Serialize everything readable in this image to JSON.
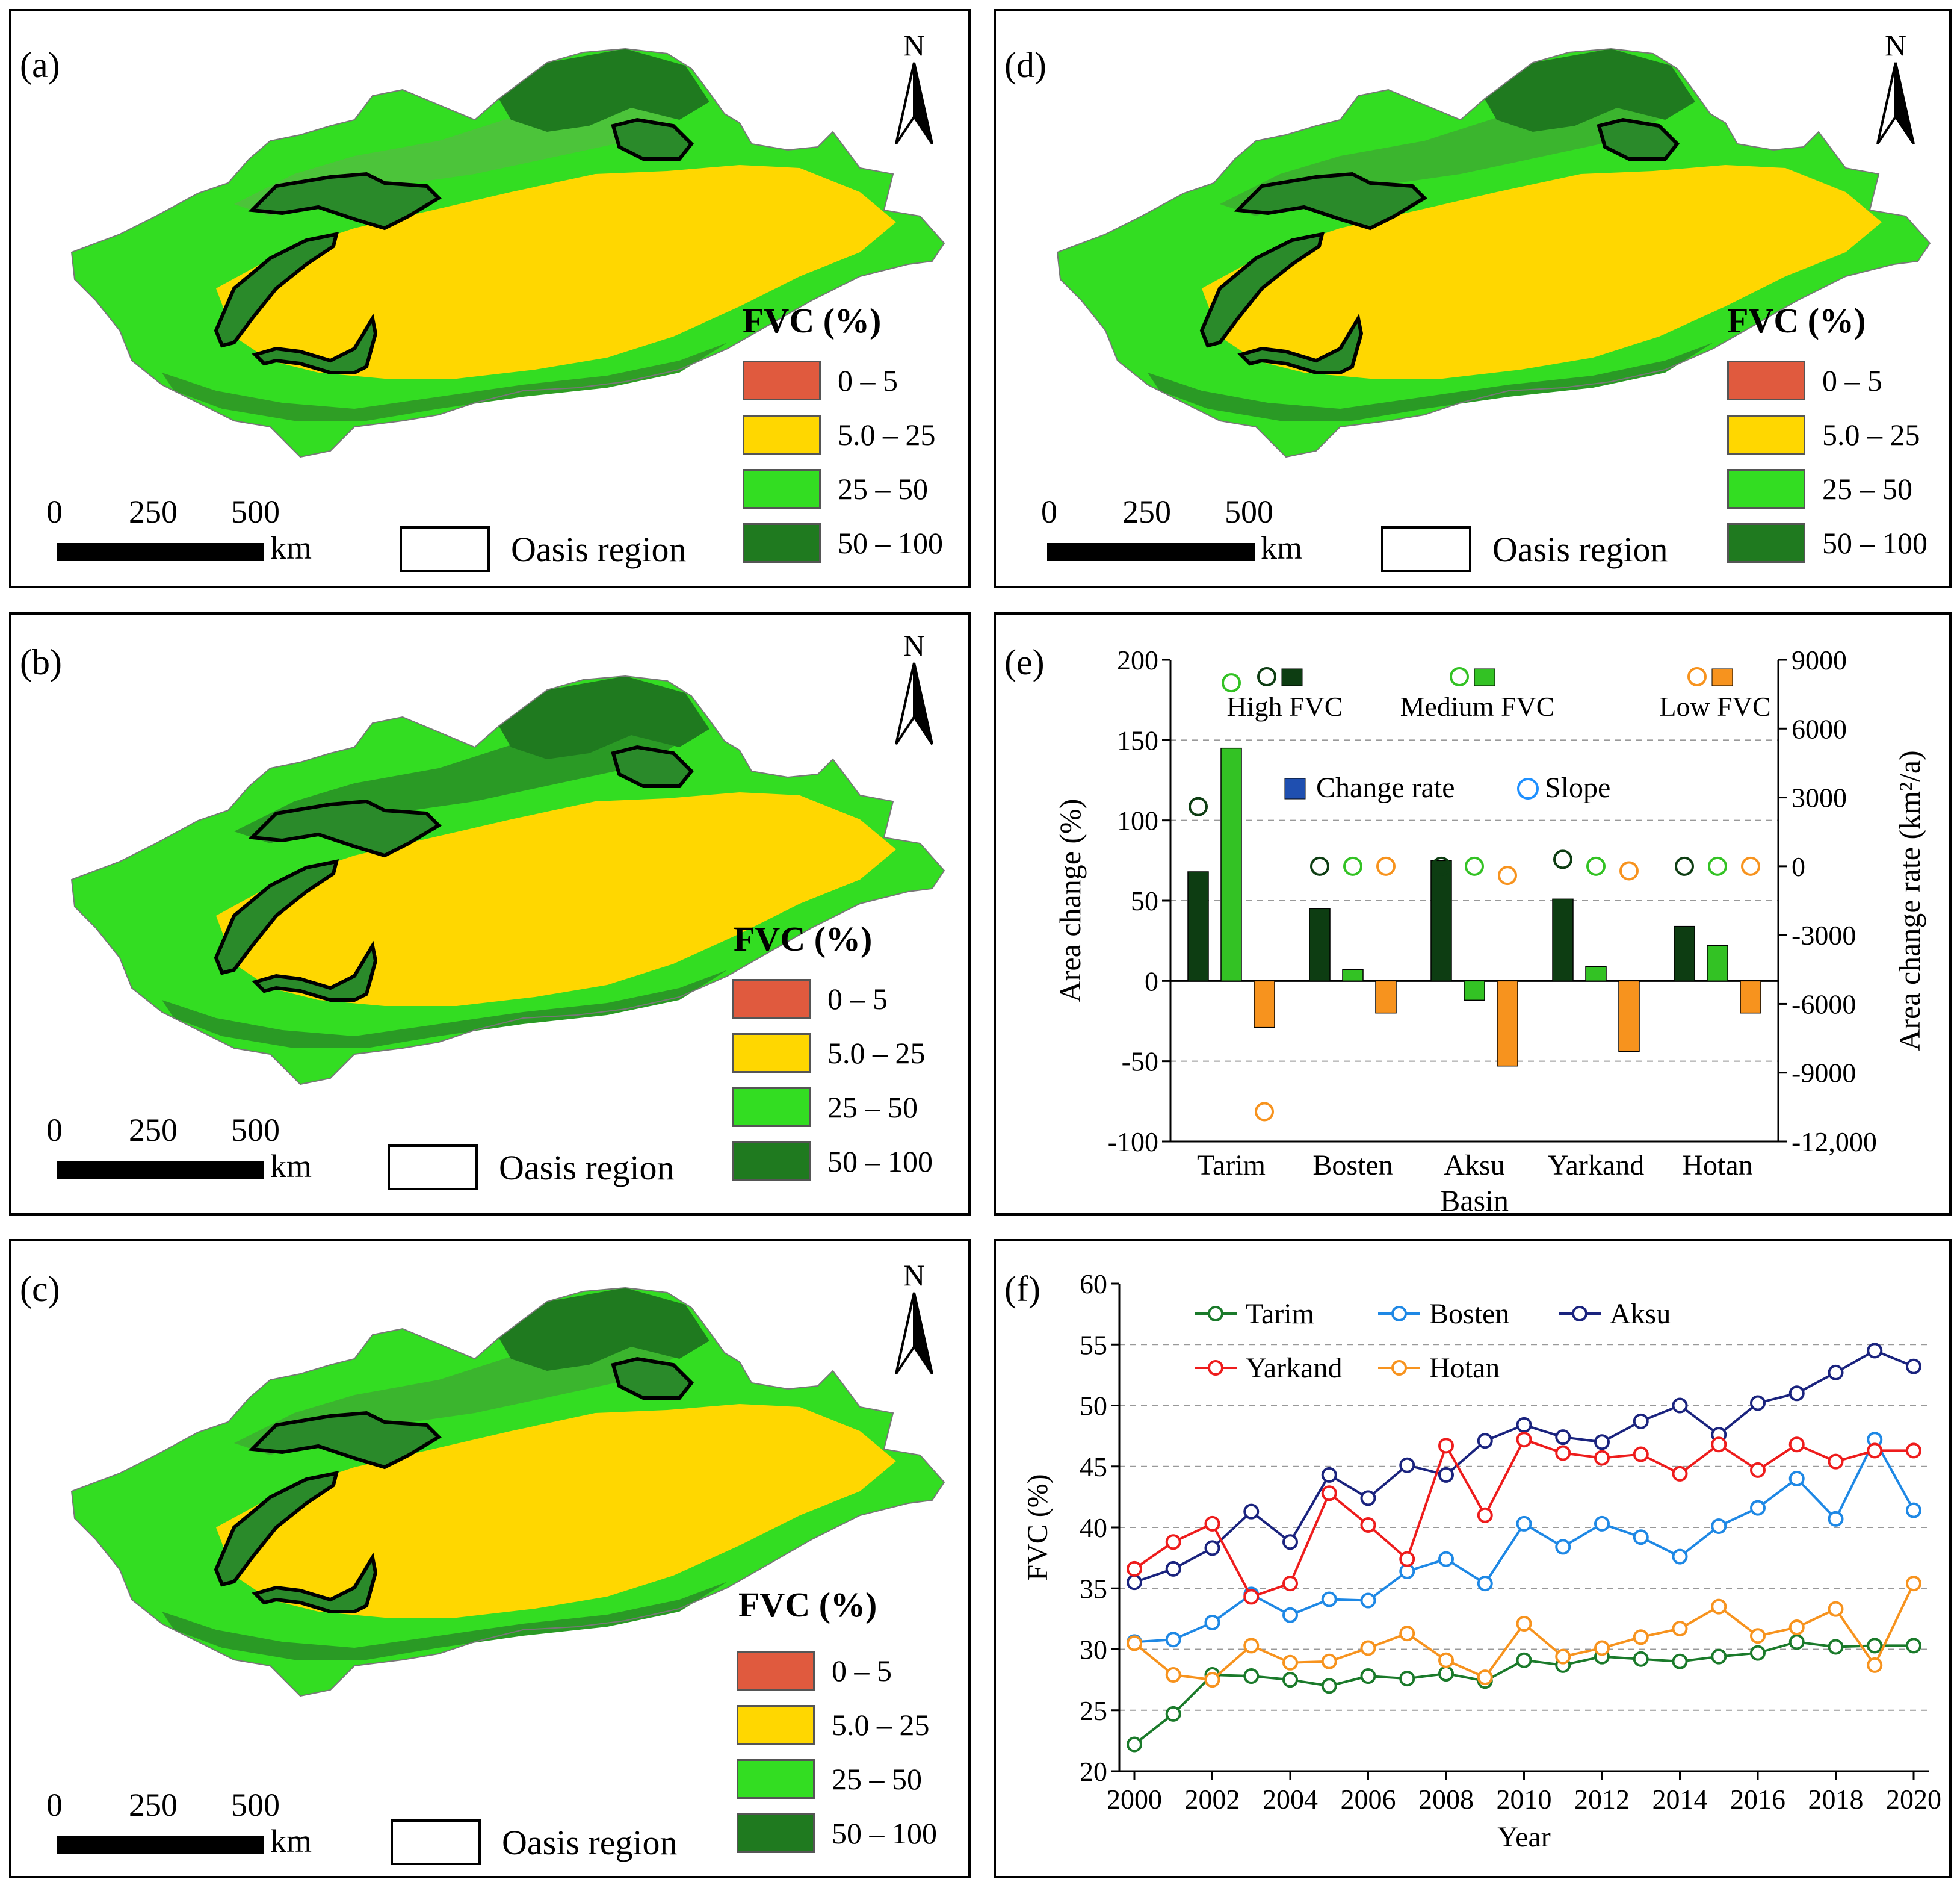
{
  "maps": [
    {
      "tag": "(a)",
      "legend_title": "FVC (%)",
      "classes": [
        {
          "label": "0 – 5",
          "color": "#e05a3e"
        },
        {
          "label": "5.0 – 25",
          "color": "#ffd700"
        },
        {
          "label": "25 – 50",
          "color": "#33dd22"
        },
        {
          "label": "50 – 100",
          "color": "#1f7a1f"
        }
      ],
      "scale": [
        "0",
        "250",
        "500"
      ],
      "scale_unit": "km",
      "oasis_label": "Oasis region",
      "north": "N"
    },
    {
      "tag": "(b)",
      "legend_title": "FVC (%)",
      "classes": [
        {
          "label": "0 – 5",
          "color": "#e05a3e"
        },
        {
          "label": "5.0 – 25",
          "color": "#ffd700"
        },
        {
          "label": "25 – 50",
          "color": "#33dd22"
        },
        {
          "label": "50 – 100",
          "color": "#1f7a1f"
        }
      ],
      "scale": [
        "0",
        "250",
        "500"
      ],
      "scale_unit": "km",
      "oasis_label": "Oasis region",
      "north": "N"
    },
    {
      "tag": "(c)",
      "legend_title": "FVC (%)",
      "classes": [
        {
          "label": "0 – 5",
          "color": "#e05a3e"
        },
        {
          "label": "5.0 – 25",
          "color": "#ffd700"
        },
        {
          "label": "25 – 50",
          "color": "#33dd22"
        },
        {
          "label": "50 – 100",
          "color": "#1f7a1f"
        }
      ],
      "scale": [
        "0",
        "250",
        "500"
      ],
      "scale_unit": "km",
      "oasis_label": "Oasis region",
      "north": "N"
    },
    {
      "tag": "(d)",
      "legend_title": "FVC (%)",
      "classes": [
        {
          "label": "0 – 5",
          "color": "#e05a3e"
        },
        {
          "label": "5.0 – 25",
          "color": "#ffd700"
        },
        {
          "label": "25 – 50",
          "color": "#33dd22"
        },
        {
          "label": "50 – 100",
          "color": "#1f7a1f"
        }
      ],
      "scale": [
        "0",
        "250",
        "500"
      ],
      "scale_unit": "km",
      "oasis_label": "Oasis region",
      "north": "N"
    }
  ],
  "chart_data": [
    {
      "panel": "(e)",
      "type": "bar",
      "xlabel": "Basin",
      "ylabel": "Area change (%)",
      "y2label": "Area change rate (km²/a)",
      "ylim": [
        -100,
        200
      ],
      "yticks": [
        "200",
        "150",
        "100",
        "50",
        "0",
        "-50",
        "-100"
      ],
      "y2lim": [
        -12000,
        9000
      ],
      "y2ticks": [
        "9000",
        "6000",
        "3000",
        "0",
        "-3000",
        "-6000",
        "-9000",
        "-12,000"
      ],
      "grid": "dashed",
      "categories": [
        "Tarim",
        "Bosten",
        "Aksu",
        "Yarkand",
        "Hotan"
      ],
      "series": [
        {
          "name": "High FVC",
          "color": "#0d3d12",
          "values": [
            68,
            45,
            75,
            51,
            34
          ],
          "slope": [
            2600,
            0,
            0,
            300,
            0
          ]
        },
        {
          "name": "Medium FVC",
          "color": "#33c224",
          "values": [
            145,
            7,
            -12,
            9,
            22
          ],
          "slope": [
            8000,
            0,
            0,
            0,
            0
          ]
        },
        {
          "name": "Low FVC",
          "color": "#f7931e",
          "values": [
            -29,
            -20,
            -53,
            -44,
            -20
          ],
          "slope": [
            -10700,
            0,
            -400,
            -200,
            0
          ]
        }
      ],
      "legend_kinds": [
        "Change rate",
        "Slope"
      ],
      "legend_kind_colors": [
        "#1f4fb0",
        "#1e90ff"
      ]
    },
    {
      "panel": "(f)",
      "type": "line",
      "xlabel": "Year",
      "ylabel": "FVC (%)",
      "ylim": [
        20,
        60
      ],
      "yticks": [
        "60",
        "55",
        "50",
        "45",
        "40",
        "35",
        "30",
        "25",
        "20"
      ],
      "xticks": [
        "2000",
        "2002",
        "2004",
        "2006",
        "2008",
        "2010",
        "2012",
        "2014",
        "2016",
        "2018",
        "2020"
      ],
      "grid": "dashed",
      "x": [
        2000,
        2001,
        2002,
        2003,
        2004,
        2005,
        2006,
        2007,
        2008,
        2009,
        2010,
        2011,
        2012,
        2013,
        2014,
        2015,
        2016,
        2017,
        2018,
        2019,
        2020
      ],
      "series": [
        {
          "name": "Tarim",
          "color": "#1a7a2a",
          "values": [
            22.2,
            24.7,
            27.9,
            27.8,
            27.5,
            27.0,
            27.8,
            27.6,
            28.0,
            27.4,
            29.1,
            28.7,
            29.4,
            29.2,
            29.0,
            29.4,
            29.7,
            30.6,
            30.2,
            30.3,
            30.3
          ]
        },
        {
          "name": "Bosten",
          "color": "#1e88e5",
          "values": [
            30.6,
            30.8,
            32.2,
            34.5,
            32.8,
            34.1,
            34.0,
            36.4,
            37.4,
            35.4,
            40.3,
            38.4,
            40.3,
            39.2,
            37.6,
            40.1,
            41.6,
            44.0,
            40.7,
            47.2,
            41.4
          ]
        },
        {
          "name": "Aksu",
          "color": "#1a237e",
          "values": [
            35.5,
            36.6,
            38.3,
            41.3,
            38.8,
            44.3,
            42.4,
            45.1,
            44.3,
            47.1,
            48.4,
            47.4,
            47.0,
            48.7,
            50.0,
            47.6,
            50.2,
            51.0,
            52.7,
            54.5,
            53.2
          ]
        },
        {
          "name": "Yarkand",
          "color": "#ee1c1c",
          "values": [
            36.6,
            38.8,
            40.3,
            34.3,
            35.4,
            42.8,
            40.2,
            37.4,
            46.7,
            41.0,
            47.2,
            46.1,
            45.7,
            46.0,
            44.4,
            46.8,
            44.7,
            46.8,
            45.4,
            46.3,
            46.3
          ]
        },
        {
          "name": "Hotan",
          "color": "#f7931e",
          "values": [
            30.5,
            27.9,
            27.5,
            30.3,
            28.9,
            29.0,
            30.1,
            31.3,
            29.1,
            27.7,
            32.1,
            29.4,
            30.1,
            31.0,
            31.7,
            33.5,
            31.1,
            31.8,
            33.3,
            28.7,
            35.4
          ]
        }
      ]
    }
  ]
}
